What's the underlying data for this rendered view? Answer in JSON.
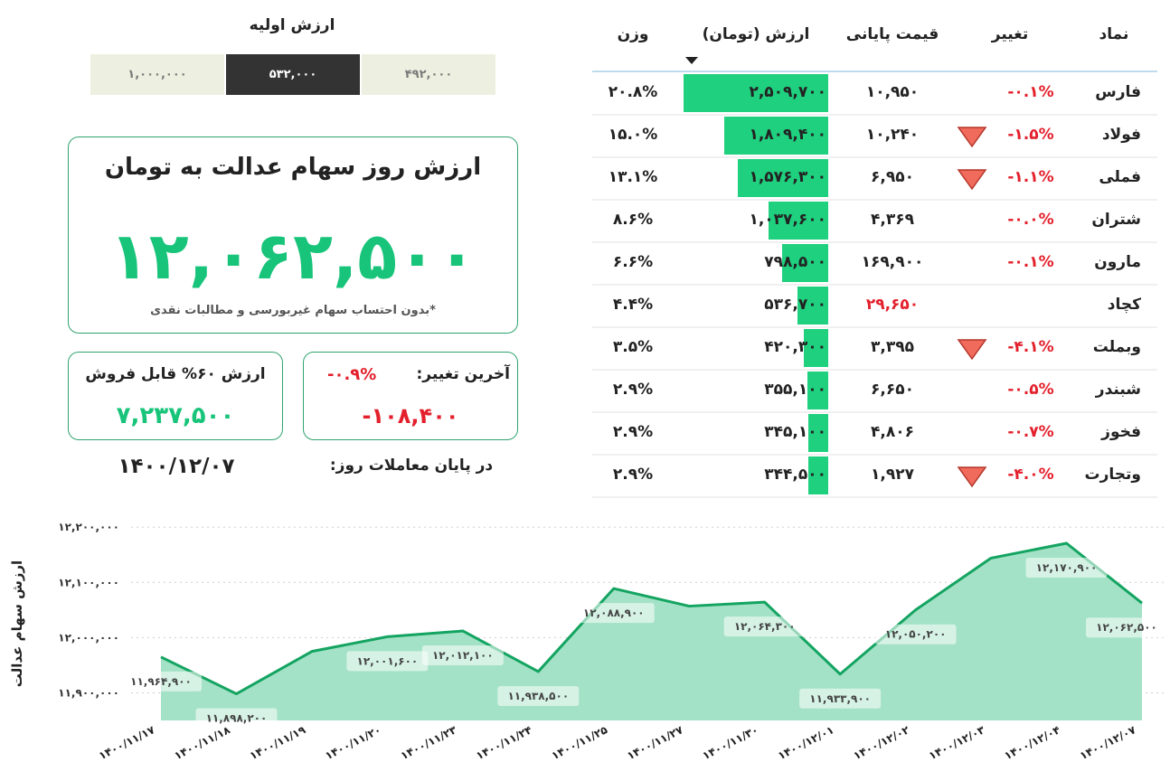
{
  "initial_value": {
    "title": "ارزش اولیه",
    "options": [
      "۱,۰۰۰,۰۰۰",
      "۵۳۲,۰۰۰",
      "۴۹۲,۰۰۰"
    ],
    "selected": 1
  },
  "summary": {
    "title": "ارزش روز سهام عدالت به تومان",
    "value": "۱۲,۰۶۲,۵۰۰",
    "note": "*بدون احتساب سهام غیربورسی و مطالبات نقدی"
  },
  "sellable": {
    "label": "ارزش ۶۰% قابل فروش",
    "value": "۷,۲۳۷,۵۰۰"
  },
  "last_change": {
    "label": "آخرین تغییر:",
    "percent": "-۰.۹%",
    "value": "-۱۰۸,۴۰۰"
  },
  "date": {
    "label": "در پایان معاملات روز:",
    "value": "۱۴۰۰/۱۲/۰۷"
  },
  "table": {
    "headers": [
      "نماد",
      "تغییر",
      "قیمت پایانی",
      "ارزش (تومان)",
      "وزن"
    ],
    "bar_color": "#1fd07f",
    "rows": [
      {
        "symbol": "فارس",
        "change": "-۰.۱%",
        "price": "۱۰,۹۵۰",
        "value": "۲,۵۰۹,۷۰۰",
        "weight": "۲۰.۸%"
      },
      {
        "symbol": "فولاد",
        "change": "-۱.۵%",
        "arrow": "down",
        "price": "۱۰,۲۴۰",
        "value": "۱,۸۰۹,۴۰۰",
        "weight": "۱۵.۰%"
      },
      {
        "symbol": "فملی",
        "change": "-۱.۱%",
        "arrow": "down",
        "price": "۶,۹۵۰",
        "value": "۱,۵۷۶,۳۰۰",
        "weight": "۱۳.۱%"
      },
      {
        "symbol": "شتران",
        "change": "-۰.۰%",
        "price": "۴,۳۶۹",
        "value": "۱,۰۳۷,۶۰۰",
        "weight": "۸.۶%"
      },
      {
        "symbol": "مارون",
        "change": "-۰.۱%",
        "price": "۱۶۹,۹۰۰",
        "value": "۷۹۸,۵۰۰",
        "weight": "۶.۶%"
      },
      {
        "symbol": "کچاد",
        "price": "۲۹,۶۵۰",
        "price_color": "#e3202c",
        "value": "۵۳۶,۷۰۰",
        "weight": "۴.۴%"
      },
      {
        "symbol": "وبملت",
        "change": "-۴.۱%",
        "arrow": "down",
        "price": "۳,۳۹۵",
        "value": "۴۲۰,۳۰۰",
        "weight": "۳.۵%"
      },
      {
        "symbol": "شبندر",
        "change": "-۰.۵%",
        "price": "۶,۶۵۰",
        "value": "۳۵۵,۱۰۰",
        "weight": "۲.۹%"
      },
      {
        "symbol": "فخوز",
        "change": "-۰.۷%",
        "price": "۴,۸۰۶",
        "value": "۳۴۵,۱۰۰",
        "weight": "۲.۹%"
      },
      {
        "symbol": "وتجارت",
        "change": "-۴.۰%",
        "arrow": "down",
        "price": "۱,۹۲۷",
        "value": "۳۴۴,۵۰۰",
        "weight": "۲.۹%"
      }
    ],
    "bar_values": [
      2509700,
      1809400,
      1576300,
      1037600,
      798500,
      536700,
      420300,
      355100,
      345100,
      344500
    ]
  },
  "chart_data": {
    "type": "area",
    "y_label": "ارزش سهام عدالت",
    "categories": [
      "۱۴۰۰/۱۱/۱۷",
      "۱۴۰۰/۱۱/۱۸",
      "۱۴۰۰/۱۱/۱۹",
      "۱۴۰۰/۱۱/۲۰",
      "۱۴۰۰/۱۱/۲۳",
      "۱۴۰۰/۱۱/۲۴",
      "۱۴۰۰/۱۱/۲۵",
      "۱۴۰۰/۱۱/۲۷",
      "۱۴۰۰/۱۱/۳۰",
      "۱۴۰۰/۱۲/۰۱",
      "۱۴۰۰/۱۲/۰۲",
      "۱۴۰۰/۱۲/۰۳",
      "۱۴۰۰/۱۲/۰۴",
      "۱۴۰۰/۱۲/۰۷"
    ],
    "values": [
      11964900,
      11898200,
      11975000,
      12001600,
      12012100,
      11938500,
      12088900,
      12057000,
      12064300,
      11933900,
      12050200,
      12144000,
      12170900,
      12062500
    ],
    "value_labels": [
      "۱۱,۹۶۴,۹۰۰",
      "۱۱,۸۹۸,۲۰۰",
      null,
      "۱۲,۰۰۱,۶۰۰",
      "۱۲,۰۱۲,۱۰۰",
      "۱۱,۹۳۸,۵۰۰",
      "۱۲,۰۸۸,۹۰۰",
      null,
      "۱۲,۰۶۴,۳۰۰",
      "۱۱,۹۳۳,۹۰۰",
      "۱۲,۰۵۰,۲۰۰",
      null,
      "۱۲,۱۷۰,۹۰۰",
      "۱۲,۰۶۲,۵۰۰"
    ],
    "color": "#14a461",
    "fill": "#a3e2c6",
    "ylim": [
      11850000,
      12220000
    ],
    "yticks": [
      {
        "value": 11900000,
        "label": "۱۱,۹۰۰,۰۰۰"
      },
      {
        "value": 12000000,
        "label": "۱۲,۰۰۰,۰۰۰"
      },
      {
        "value": 12100000,
        "label": "۱۲,۱۰۰,۰۰۰"
      },
      {
        "value": 12200000,
        "label": "۱۲,۲۰۰,۰۰۰"
      }
    ],
    "grid": true
  }
}
